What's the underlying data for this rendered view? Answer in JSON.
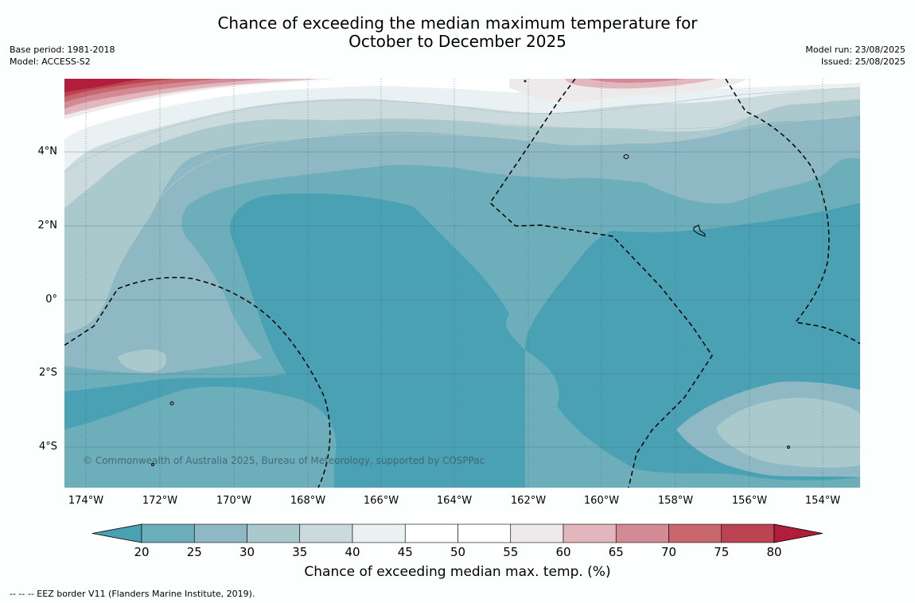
{
  "title_line1": "Chance of exceeding the median maximum temperature for",
  "title_line2": "October to December 2025",
  "meta_left": {
    "base_period": "Base period: 1981-2018",
    "model": "Model: ACCESS-S2"
  },
  "meta_right": {
    "model_run": "Model run: 23/08/2025",
    "issued": "Issued: 25/08/2025"
  },
  "lat_ticks": [
    "4°N",
    "2°N",
    "0°",
    "2°S",
    "4°S"
  ],
  "lon_ticks": [
    "174°W",
    "172°W",
    "170°W",
    "168°W",
    "166°W",
    "164°W",
    "162°W",
    "160°W",
    "158°W",
    "156°W",
    "154°W"
  ],
  "copyright": "© Commonwealth of Australia 2025, Bureau of Meteorology, supported by COSPPac",
  "colorbar": {
    "tick_labels": [
      "20",
      "25",
      "30",
      "35",
      "40",
      "45",
      "50",
      "55",
      "60",
      "65",
      "70",
      "75",
      "80"
    ],
    "colors": [
      "#4aa1b4",
      "#6caeba",
      "#8db8c4",
      "#a9c9cd",
      "#cbdadd",
      "#eaf1f3",
      "#ffffff",
      "#ffffff",
      "#eee9ea",
      "#e2b6bd",
      "#d48a94",
      "#c9676f",
      "#bc4452",
      "#b31d3c"
    ],
    "label": "Chance of exceeding median max. temp. (%)"
  },
  "footnote": "--  --  -- EEZ border V11 (Flanders Marine Institute, 2019)."
}
